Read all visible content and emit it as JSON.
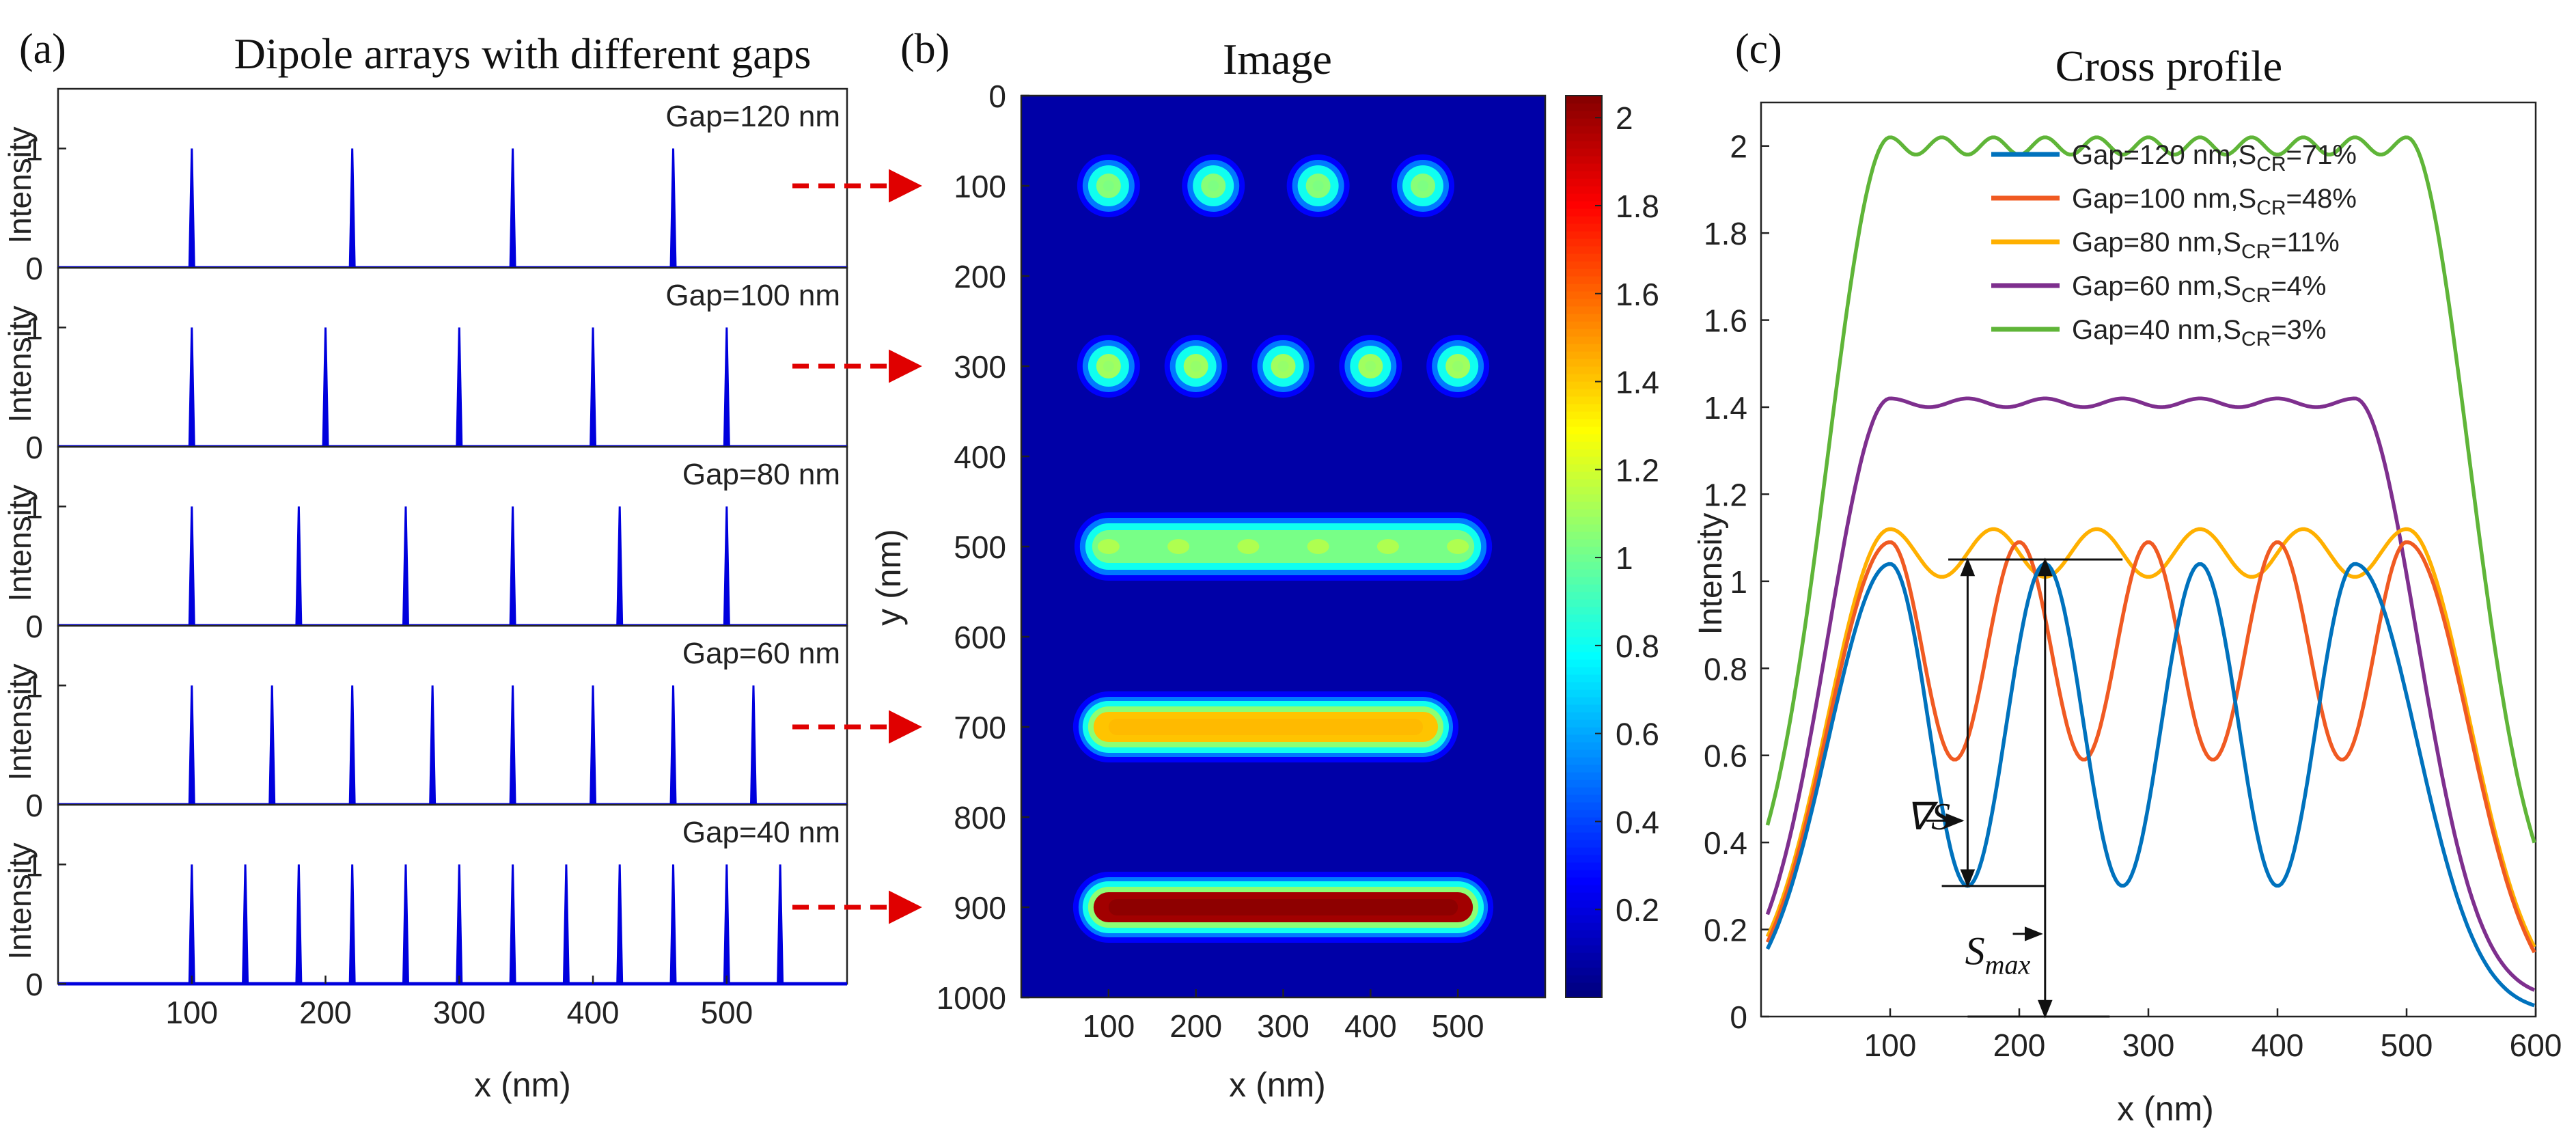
{
  "colors": {
    "axis": "#222222",
    "stem": "#0000dd",
    "arrow": "#e00000",
    "curve1": "#0072bd",
    "curve2": "#f05a22",
    "curve3": "#ffb000",
    "curve4": "#7e2f8e",
    "curve5": "#5fb538"
  },
  "chart_data": [
    {
      "type": "stem",
      "panel_label": "(a)",
      "title": "Dipole arrays with different gaps",
      "xlabel": "x (nm)",
      "ylabel": "Intensity",
      "xlim": [
        0,
        590
      ],
      "ylim": [
        0,
        1.5
      ],
      "xticks": [
        "100",
        "200",
        "300",
        "400",
        "500"
      ],
      "xtick_values": [
        100,
        200,
        300,
        400,
        500
      ],
      "yticks": [
        "0",
        "1"
      ],
      "ytick_values": [
        0,
        1
      ],
      "subplots": [
        {
          "label": "Gap=120 nm",
          "x": [
            100,
            220,
            340,
            460
          ],
          "y": [
            1,
            1,
            1,
            1
          ]
        },
        {
          "label": "Gap=100 nm",
          "x": [
            100,
            200,
            300,
            400,
            500
          ],
          "y": [
            1,
            1,
            1,
            1,
            1
          ]
        },
        {
          "label": "Gap=80 nm",
          "x": [
            100,
            180,
            260,
            340,
            420,
            500
          ],
          "y": [
            1,
            1,
            1,
            1,
            1,
            1
          ]
        },
        {
          "label": "Gap=60 nm",
          "x": [
            100,
            160,
            220,
            280,
            340,
            400,
            460,
            520
          ],
          "y": [
            1,
            1,
            1,
            1,
            1,
            1,
            1,
            1
          ]
        },
        {
          "label": "Gap=40 nm",
          "x": [
            100,
            140,
            180,
            220,
            260,
            300,
            340,
            380,
            420,
            460,
            500,
            540
          ],
          "y": [
            1,
            1,
            1,
            1,
            1,
            1,
            1,
            1,
            1,
            1,
            1,
            1
          ]
        }
      ]
    },
    {
      "type": "heatmap",
      "panel_label": "(b)",
      "title": "Image",
      "xlabel": "x (nm)",
      "ylabel": "y (nm)",
      "xlim": [
        0,
        600
      ],
      "ylim": [
        1000,
        0
      ],
      "xticks": [
        "100",
        "200",
        "300",
        "400",
        "500"
      ],
      "xtick_values": [
        100,
        200,
        300,
        400,
        500
      ],
      "yticks": [
        "0",
        "100",
        "200",
        "300",
        "400",
        "500",
        "600",
        "700",
        "800",
        "900",
        "1000"
      ],
      "ytick_values": [
        0,
        100,
        200,
        300,
        400,
        500,
        600,
        700,
        800,
        900,
        1000
      ],
      "colorbar": {
        "min": 0,
        "max": 2.05,
        "ticks": [
          "0.2",
          "0.4",
          "0.6",
          "0.8",
          "1",
          "1.2",
          "1.4",
          "1.6",
          "1.8",
          "2"
        ],
        "tick_values": [
          0.2,
          0.4,
          0.6,
          0.8,
          1,
          1.2,
          1.4,
          1.6,
          1.8,
          2
        ]
      },
      "rows": [
        {
          "y": 100,
          "gap_nm": 120,
          "peak": 1.04,
          "valley": 0.3
        },
        {
          "y": 300,
          "gap_nm": 100,
          "peak": 1.09,
          "valley": 0.59
        },
        {
          "y": 500,
          "gap_nm": 80,
          "peak": 1.12,
          "valley": 1.01
        },
        {
          "y": 700,
          "gap_nm": 60,
          "peak": 1.42,
          "valley": 1.4
        },
        {
          "y": 900,
          "gap_nm": 40,
          "peak": 2.02,
          "valley": 1.98
        }
      ]
    },
    {
      "type": "line",
      "panel_label": "(c)",
      "title": "Cross profile",
      "xlabel": "x (nm)",
      "ylabel": "Intensity",
      "xlim": [
        0,
        600
      ],
      "ylim": [
        0,
        2.1
      ],
      "xticks": [
        "100",
        "200",
        "300",
        "400",
        "500",
        "600"
      ],
      "xtick_values": [
        100,
        200,
        300,
        400,
        500,
        600
      ],
      "yticks": [
        "0",
        "0.2",
        "0.4",
        "0.6",
        "0.8",
        "1",
        "1.2",
        "1.4",
        "1.6",
        "1.8",
        "2"
      ],
      "ytick_values": [
        0,
        0.2,
        0.4,
        0.6,
        0.8,
        1,
        1.2,
        1.4,
        1.6,
        1.8,
        2
      ],
      "series": [
        {
          "name": "Gap=120 nm,S",
          "sub": "CR",
          "suffix": "=71%",
          "gap": 120,
          "peak": 1.04,
          "valley": 0.3,
          "edge": 0.01,
          "color_key": "curve1"
        },
        {
          "name": "Gap=100 nm,S",
          "sub": "CR",
          "suffix": "=48%",
          "gap": 100,
          "peak": 1.09,
          "valley": 0.59,
          "edge": 0.02,
          "color_key": "curve2"
        },
        {
          "name": "Gap=80 nm,S",
          "sub": "CR",
          "suffix": "=11%",
          "gap": 80,
          "peak": 1.12,
          "valley": 1.01,
          "edge": 0.03,
          "color_key": "curve3"
        },
        {
          "name": "Gap=60 nm,S",
          "sub": "CR",
          "suffix": "=4%",
          "gap": 60,
          "peak": 1.42,
          "valley": 1.4,
          "edge": 0.04,
          "color_key": "curve4"
        },
        {
          "name": "Gap=40 nm,S",
          "sub": "CR",
          "suffix": "=3%",
          "gap": 40,
          "peak": 2.02,
          "valley": 1.98,
          "edge": 0.18,
          "color_key": "curve5"
        }
      ],
      "annotations": {
        "grad_label": "∇S",
        "smax_label": "S",
        "smax_sub": "max"
      }
    }
  ]
}
